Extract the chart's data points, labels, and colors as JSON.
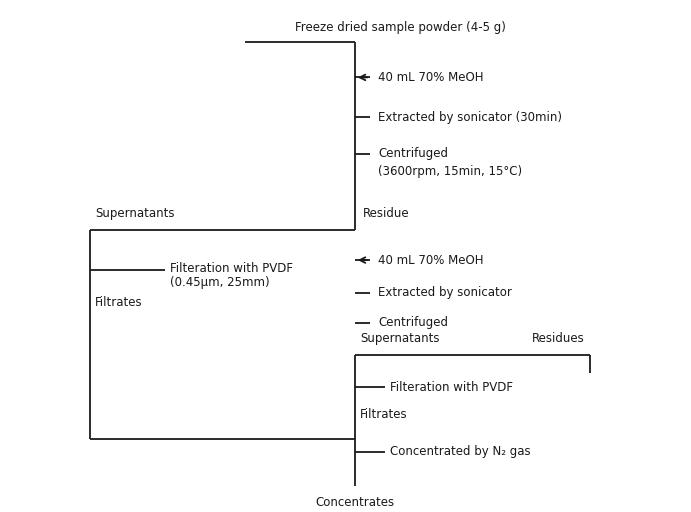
{
  "background_color": "#ffffff",
  "text_color": "#1a1a1a",
  "line_color": "#1a1a1a",
  "font_size": 8.5,
  "fig_width": 6.91,
  "fig_height": 5.12,
  "labels": {
    "freeze_dried": "Freeze dried sample powder (4-5 g)",
    "meoh1": "40 mL 70% MeOH",
    "sonicator1": "Extracted by sonicator (30min)",
    "centrifuged1": "Centrifuged",
    "centrifuged1b": "(3600rpm, 15min, 15°C)",
    "supernatants1": "Supernatants",
    "residue1": "Residue",
    "filteration1": "Filteration with PVDF",
    "filteration1b": "(0.45μm, 25mm)",
    "filtrates1": "Filtrates",
    "meoh2": "40 mL 70% MeOH",
    "sonicator2": "Extracted by sonicator",
    "centrifuged2": "Centrifuged",
    "supernatants2": "Supernatants",
    "residues2": "Residues",
    "filteration2": "Filteration with PVDF",
    "filtrates2": "Filtrates",
    "concentrated": "Concentrated by N₂ gas",
    "concentrates": "Concentrates"
  }
}
